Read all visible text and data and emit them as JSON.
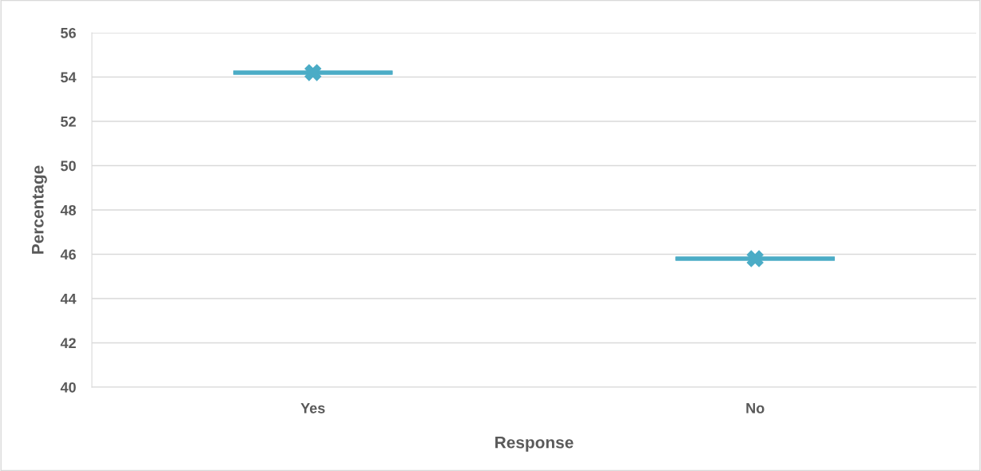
{
  "chart_data": {
    "type": "box",
    "xlabel": "Response",
    "ylabel": "Percentage",
    "categories": [
      "Yes",
      "No"
    ],
    "boxes": [
      {
        "low": 54.2,
        "q1": 54.2,
        "median": 54.2,
        "q3": 54.2,
        "high": 54.2,
        "mean": 54.2
      },
      {
        "low": 45.8,
        "q1": 45.8,
        "median": 45.8,
        "q3": 45.8,
        "high": 45.8,
        "mean": 45.8
      }
    ],
    "color": "#4bacc6",
    "marker": "cross",
    "ylim": [
      40,
      56
    ],
    "yticks": [
      40,
      42,
      44,
      46,
      48,
      50,
      52,
      54,
      56
    ],
    "grid": "y"
  }
}
